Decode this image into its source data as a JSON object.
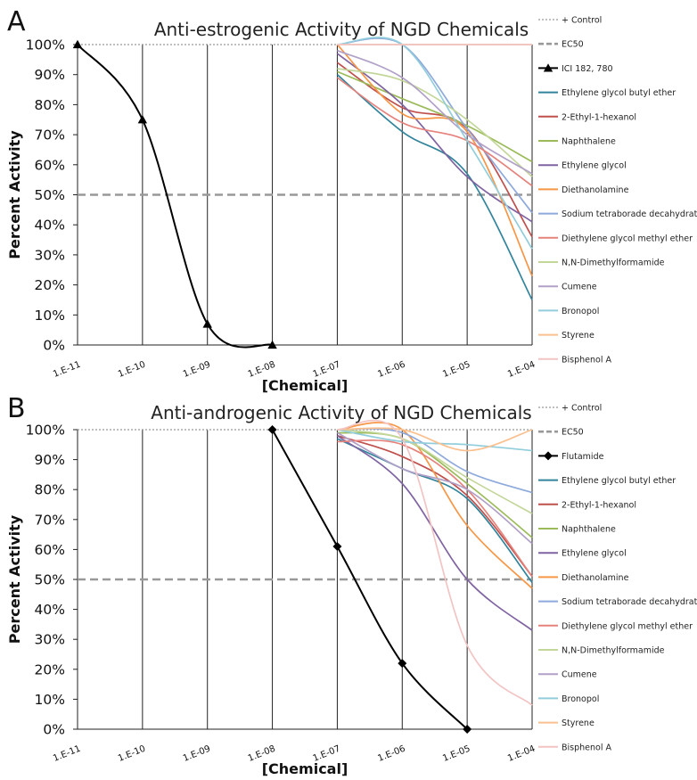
{
  "chart_data": [
    {
      "panel_letter": "A",
      "type": "line",
      "title": "Anti-estrogenic Activity of NGD Chemicals",
      "xlabel": "[Chemical]",
      "ylabel": "Percent Activity",
      "x_scale": "log",
      "x_ticks": [
        "1.E-11",
        "1.E-10",
        "1.E-09",
        "1.E-08",
        "1.E-07",
        "1.E-06",
        "1.E-05",
        "1.E-04"
      ],
      "y_ticks": [
        "0%",
        "10%",
        "20%",
        "30%",
        "40%",
        "50%",
        "60%",
        "70%",
        "80%",
        "90%",
        "100%"
      ],
      "ylim": [
        0,
        100
      ],
      "grid": "vertical lines at each decade",
      "legend_position": "right",
      "series": [
        {
          "name": "+ Control",
          "style": "dotted",
          "color": "#999999",
          "x": [
            1e-11,
            0.0001
          ],
          "y": [
            100,
            100
          ]
        },
        {
          "name": "EC50",
          "style": "dashed",
          "color": "#999999",
          "x": [
            1e-11,
            0.0001
          ],
          "y": [
            50,
            50
          ]
        },
        {
          "name": "ICI 182, 780",
          "style": "solid-marker",
          "marker": "triangle",
          "color": "#000000",
          "x": [
            1e-11,
            1e-10,
            1e-09,
            1e-08
          ],
          "y": [
            100,
            75,
            7,
            0
          ]
        },
        {
          "name": "Ethylene glycol butyl ether",
          "color": "#31849B",
          "x": [
            1e-07,
            1e-06,
            1e-05,
            0.0001
          ],
          "y": [
            90,
            71,
            57,
            15
          ]
        },
        {
          "name": "2-Ethyl-1-hexanol",
          "color": "#C0504D",
          "x": [
            1e-07,
            1e-06,
            1e-05,
            0.0001
          ],
          "y": [
            94,
            79,
            72,
            36
          ]
        },
        {
          "name": "Naphthalene",
          "color": "#9BBB59",
          "x": [
            1e-07,
            1e-06,
            1e-05,
            0.0001
          ],
          "y": [
            91,
            82,
            73,
            61
          ]
        },
        {
          "name": "Ethylene glycol",
          "color": "#8064A2",
          "x": [
            1e-07,
            1e-06,
            1e-05,
            0.0001
          ],
          "y": [
            97,
            80,
            56,
            41
          ]
        },
        {
          "name": "Diethanolamine",
          "color": "#F79646",
          "x": [
            1e-07,
            1e-06,
            1e-05,
            0.0001
          ],
          "y": [
            100,
            77,
            71,
            23
          ]
        },
        {
          "name": "Sodium tetraborade decahydrate",
          "color": "#8EA9DB",
          "x": [
            1e-07,
            1e-06,
            1e-05,
            0.0001
          ],
          "y": [
            100,
            100,
            72,
            44
          ]
        },
        {
          "name": "Diethylene glycol methyl ether",
          "color": "#E6827C",
          "x": [
            1e-07,
            1e-06,
            1e-05,
            0.0001
          ],
          "y": [
            89,
            74,
            68,
            53
          ]
        },
        {
          "name": "N,N-Dimethylformamide",
          "color": "#C4D79B",
          "x": [
            1e-07,
            1e-06,
            1e-05,
            0.0001
          ],
          "y": [
            92,
            88,
            75,
            56
          ]
        },
        {
          "name": "Cumene",
          "color": "#B1A0C7",
          "x": [
            1e-07,
            1e-06,
            1e-05,
            0.0001
          ],
          "y": [
            98,
            89,
            70,
            57
          ]
        },
        {
          "name": "Bronopol",
          "color": "#92CDDC",
          "x": [
            1e-07,
            1e-06,
            1e-05,
            0.0001
          ],
          "y": [
            100,
            100,
            68,
            32
          ]
        },
        {
          "name": "Styrene",
          "color": "#FAC090",
          "x": [
            1e-07,
            1e-06,
            1e-05,
            0.0001
          ],
          "y": [
            100,
            100,
            100,
            100
          ]
        },
        {
          "name": "Bisphenol A",
          "color": "#F2C4C4",
          "x": [
            1e-07,
            1e-06,
            1e-05,
            0.0001
          ],
          "y": [
            100,
            100,
            100,
            100
          ]
        }
      ]
    },
    {
      "panel_letter": "B",
      "type": "line",
      "title": "Anti-androgenic Activity of NGD Chemicals",
      "xlabel": "[Chemical]",
      "ylabel": "Percent Activity",
      "x_scale": "log",
      "x_ticks": [
        "1.E-11",
        "1.E-10",
        "1.E-09",
        "1.E-08",
        "1.E-07",
        "1.E-06",
        "1.E-05",
        "1.E-04"
      ],
      "y_ticks": [
        "0%",
        "10%",
        "20%",
        "30%",
        "40%",
        "50%",
        "60%",
        "70%",
        "80%",
        "90%",
        "100%"
      ],
      "ylim": [
        0,
        100
      ],
      "grid": "vertical lines at each decade",
      "legend_position": "right",
      "series": [
        {
          "name": "+ Control",
          "style": "dotted",
          "color": "#999999",
          "x": [
            1e-11,
            0.0001
          ],
          "y": [
            100,
            100
          ]
        },
        {
          "name": "EC50",
          "style": "dashed",
          "color": "#999999",
          "x": [
            1e-11,
            0.0001
          ],
          "y": [
            50,
            50
          ]
        },
        {
          "name": "Flutamide",
          "style": "solid-marker",
          "marker": "diamond",
          "color": "#000000",
          "x": [
            1e-08,
            1e-07,
            1e-06,
            1e-05
          ],
          "y": [
            100,
            61,
            22,
            0
          ]
        },
        {
          "name": "Ethylene glycol butyl ether",
          "color": "#31849B",
          "x": [
            1e-07,
            1e-06,
            1e-05,
            0.0001
          ],
          "y": [
            97,
            87,
            77,
            49
          ]
        },
        {
          "name": "2-Ethyl-1-hexanol",
          "color": "#C0504D",
          "x": [
            1e-07,
            1e-06,
            1e-05,
            0.0001
          ],
          "y": [
            98,
            91,
            78,
            51
          ]
        },
        {
          "name": "Naphthalene",
          "color": "#9BBB59",
          "x": [
            1e-07,
            1e-06,
            1e-05,
            0.0001
          ],
          "y": [
            99,
            97,
            82,
            64
          ]
        },
        {
          "name": "Ethylene glycol",
          "color": "#8064A2",
          "x": [
            1e-07,
            1e-06,
            1e-05,
            0.0001
          ],
          "y": [
            98,
            82,
            50,
            33
          ]
        },
        {
          "name": "Diethanolamine",
          "color": "#F79646",
          "x": [
            1e-07,
            1e-06,
            1e-05,
            0.0001
          ],
          "y": [
            100,
            100,
            68,
            47
          ]
        },
        {
          "name": "Sodium tetraborade decahydrate",
          "color": "#8EA9DB",
          "x": [
            1e-07,
            1e-06,
            1e-05,
            0.0001
          ],
          "y": [
            100,
            99,
            86,
            79
          ]
        },
        {
          "name": "Diethylene glycol methyl ether",
          "color": "#E6827C",
          "x": [
            1e-07,
            1e-06,
            1e-05,
            0.0001
          ],
          "y": [
            96,
            95,
            80,
            51
          ]
        },
        {
          "name": "N,N-Dimethylformamide",
          "color": "#C4D79B",
          "x": [
            1e-07,
            1e-06,
            1e-05,
            0.0001
          ],
          "y": [
            100,
            97,
            84,
            72
          ]
        },
        {
          "name": "Cumene",
          "color": "#B1A0C7",
          "x": [
            1e-07,
            1e-06,
            1e-05,
            0.0001
          ],
          "y": [
            99,
            87,
            80,
            62
          ]
        },
        {
          "name": "Bronopol",
          "color": "#92CDDC",
          "x": [
            1e-07,
            1e-06,
            1e-05,
            0.0001
          ],
          "y": [
            100,
            96,
            95,
            93
          ]
        },
        {
          "name": "Styrene",
          "color": "#FAC090",
          "x": [
            1e-07,
            1e-06,
            1e-05,
            0.0001
          ],
          "y": [
            100,
            100,
            93,
            100
          ]
        },
        {
          "name": "Bisphenol A",
          "color": "#F2C4C4",
          "x": [
            1e-07,
            1e-06,
            1e-05,
            0.0001
          ],
          "y": [
            100,
            97,
            28,
            8
          ]
        }
      ]
    }
  ]
}
